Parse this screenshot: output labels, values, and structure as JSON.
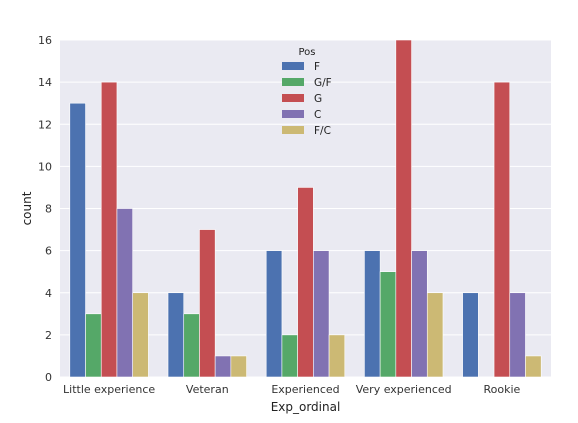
{
  "chart_data": {
    "type": "bar",
    "xlabel": "Exp_ordinal",
    "ylabel": "count",
    "ylim": [
      0,
      16
    ],
    "yticks": [
      0,
      2,
      4,
      6,
      8,
      10,
      12,
      14,
      16
    ],
    "grid": true,
    "legend": {
      "title": "Pos",
      "placement": "top-center"
    },
    "categories": [
      "Little experience",
      "Veteran",
      "Experienced",
      "Very experienced",
      "Rookie"
    ],
    "series": [
      {
        "name": "F",
        "color": "#4c72b0",
        "values": [
          13,
          4,
          6,
          6,
          4
        ]
      },
      {
        "name": "G/F",
        "color": "#55a868",
        "values": [
          3,
          3,
          2,
          5,
          null
        ]
      },
      {
        "name": "G",
        "color": "#c44e52",
        "values": [
          14,
          7,
          9,
          16,
          14
        ]
      },
      {
        "name": "C",
        "color": "#8172b2",
        "values": [
          8,
          1,
          6,
          6,
          4
        ]
      },
      {
        "name": "F/C",
        "color": "#ccb974",
        "values": [
          4,
          1,
          2,
          4,
          1
        ]
      }
    ],
    "colors": {
      "background": "#eaeaf2",
      "grid": "#ffffff"
    }
  }
}
